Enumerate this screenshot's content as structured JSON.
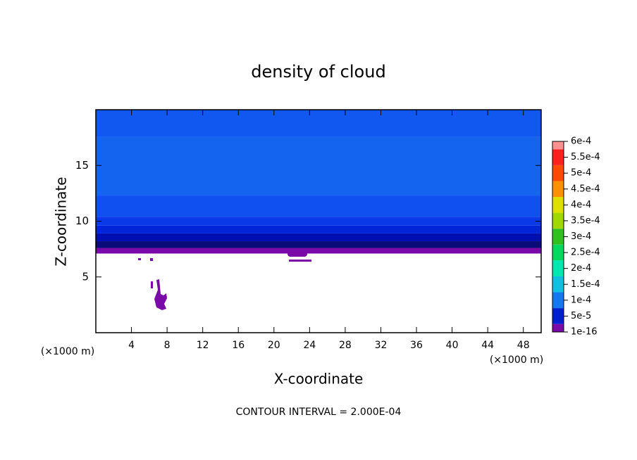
{
  "chart_data": {
    "type": "contour",
    "title": "density of cloud",
    "xlabel": "X-coordinate",
    "ylabel": "Z-coordinate",
    "xunit": "(×1000 m)",
    "yunit": "(×1000 m)",
    "footnote": "CONTOUR INTERVAL = 2.000E-04",
    "xlim": [
      0,
      50
    ],
    "xticks": [
      4,
      8,
      12,
      16,
      20,
      24,
      28,
      32,
      36,
      40,
      44,
      48
    ],
    "ylim": [
      0,
      20
    ],
    "yticks": [
      5,
      10,
      15
    ],
    "strata": [
      {
        "zlim": [
          7.1,
          7.6
        ],
        "color": "#7a0aa8"
      },
      {
        "zlim": [
          7.6,
          8.2
        ],
        "color": "#0a0a78"
      },
      {
        "zlim": [
          8.2,
          8.9
        ],
        "color": "#0010b0"
      },
      {
        "zlim": [
          8.9,
          9.6
        ],
        "color": "#0024d8"
      },
      {
        "zlim": [
          9.6,
          10.4
        ],
        "color": "#0a3ae8"
      },
      {
        "zlim": [
          10.4,
          12.3
        ],
        "color": "#1050f0"
      },
      {
        "zlim": [
          12.3,
          17.6
        ],
        "color": "#1464f0"
      },
      {
        "zlim": [
          17.6,
          20
        ],
        "color": "#1058f0"
      }
    ],
    "colorbar": {
      "levels": [
        {
          "value": 0.0006,
          "label": "6e-4"
        },
        {
          "value": 0.00055,
          "label": "5.5e-4"
        },
        {
          "value": 0.0005,
          "label": "5e-4"
        },
        {
          "value": 0.00045,
          "label": "4.5e-4"
        },
        {
          "value": 0.0004,
          "label": "4e-4"
        },
        {
          "value": 0.00035,
          "label": "3.5e-4"
        },
        {
          "value": 0.0003,
          "label": "3e-4"
        },
        {
          "value": 0.00025,
          "label": "2.5e-4"
        },
        {
          "value": 0.0002,
          "label": "2e-4"
        },
        {
          "value": 0.00015,
          "label": "1.5e-4"
        },
        {
          "value": 0.0001,
          "label": "1e-4"
        },
        {
          "value": 5e-05,
          "label": "5e-5"
        },
        {
          "value": 1e-16,
          "label": "1e-16"
        }
      ],
      "colors": [
        "#ff9090",
        "#ff2020",
        "#ff4a00",
        "#ff9000",
        "#e0e000",
        "#a0d800",
        "#30c020",
        "#00d860",
        "#00e8b0",
        "#10c0e0",
        "#1478f0",
        "#0020d0",
        "#7a0aa8"
      ]
    }
  }
}
